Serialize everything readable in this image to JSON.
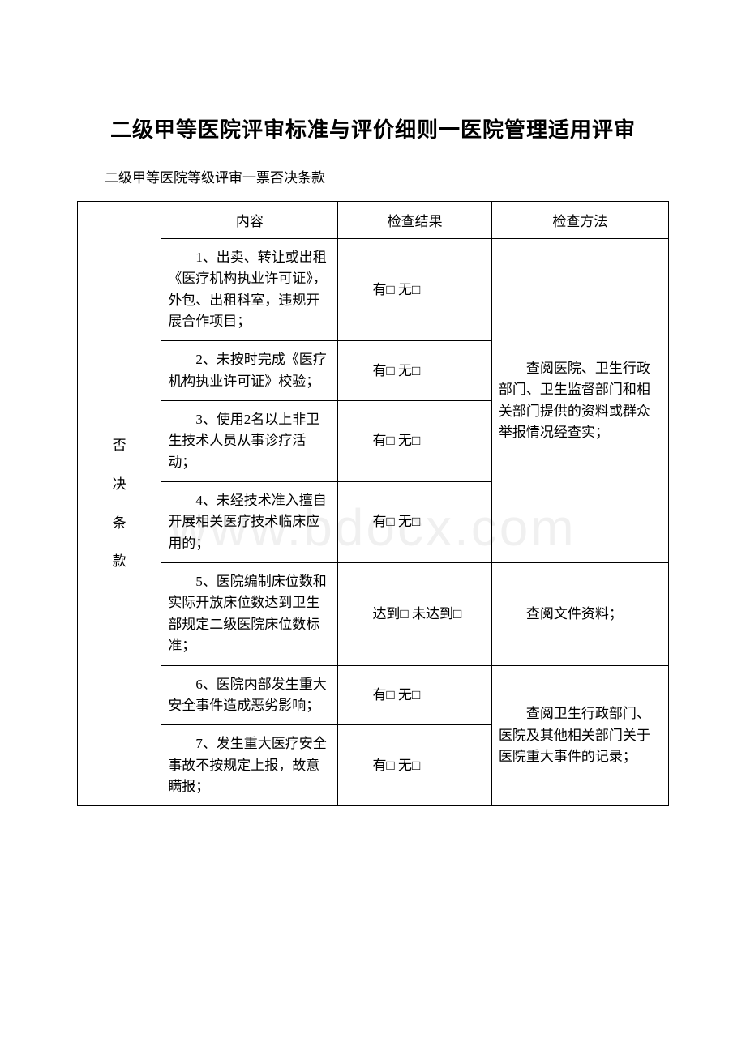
{
  "title": "二级甲等医院评审标准与评价细则一医院管理适用评审",
  "subtitle": "二级甲等医院等级评审一票否决条款",
  "watermark": "www.bdocx.com",
  "category_label": [
    "否",
    "决",
    "条",
    "款"
  ],
  "headers": {
    "content": "内容",
    "result": "检查结果",
    "method": "检查方法"
  },
  "rows": [
    {
      "content": "1、出卖、转让或出租《医疗机构执业许可证》，外包、出租科室，违规开展合作项目；",
      "result": "有□ 无□"
    },
    {
      "content": "2、未按时完成《医疗机构执业许可证》校验；",
      "result": "有□ 无□"
    },
    {
      "content": "3、使用2名以上非卫生技术人员从事诊疗活动；",
      "result": "有□ 无□"
    },
    {
      "content": "4、未经技术准入擅自开展相关医疗技术临床应用的；",
      "result": "有□ 无□"
    },
    {
      "content": "5、医院编制床位数和实际开放床位数达到卫生部规定二级医院床位数标准；",
      "result": "达到□ 未达到□"
    },
    {
      "content": "6、医院内部发生重大安全事件造成恶劣影响；",
      "result": "有□ 无□"
    },
    {
      "content": "7、发生重大医疗安全事故不按规定上报，故意瞒报；",
      "result": "有□ 无□"
    }
  ],
  "methods": {
    "group1": "查阅医院、卫生行政部门、卫生监督部门和相关部门提供的资料或群众举报情况经查实；",
    "group2": "查阅文件资料；",
    "group3": "查阅卫生行政部门、医院及其他相关部门关于医院重大事件的记录；"
  }
}
